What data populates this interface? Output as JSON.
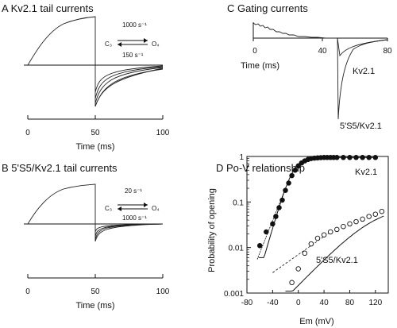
{
  "panels": {
    "a": {
      "title": "A Kv2.1 tail currents",
      "rate_forward": "1000 s⁻¹",
      "rate_backward": "150 s⁻¹",
      "state_left": "C₃",
      "state_right": "O₄",
      "xlabel": "Time (ms)",
      "xticks": [
        "0",
        "50",
        "100"
      ]
    },
    "b": {
      "title": "B 5'S5/Kv2.1 tail currents",
      "rate_forward": "20 s⁻¹",
      "rate_backward": "1000 s⁻¹",
      "state_left": "C₃",
      "state_right": "O₄",
      "xlabel": "Time (ms)",
      "xticks": [
        "0",
        "50",
        "100"
      ]
    },
    "c": {
      "title": "C Gating currents",
      "xlabel": "Time (ms)",
      "xticks": [
        "0",
        "40",
        "80"
      ],
      "label_kv": "Kv2.1",
      "label_chimera": "5'S5/Kv2.1"
    },
    "d": {
      "title": "D Po-V relationship",
      "xlabel": "Em (mV)",
      "ylabel": "Probability of opening",
      "xticks": [
        "-80",
        "-40",
        "0",
        "40",
        "80",
        "120"
      ],
      "yticks": [
        "1",
        "0.1",
        "0.01",
        "0.001"
      ],
      "label_kv": "Kv2.1",
      "label_chimera": "5'S5/Kv2.1"
    }
  },
  "chart_data": [
    {
      "type": "scatter",
      "xlabel": "Em (mV)",
      "ylabel": "Probability of opening",
      "xlim": [
        -80,
        140
      ],
      "ylim": [
        0.001,
        1
      ],
      "yscale": "log",
      "series": [
        {
          "name": "Kv2.1",
          "marker": "filled-circle",
          "x": [
            -60,
            -50,
            -40,
            -35,
            -30,
            -25,
            -20,
            -15,
            -10,
            -5,
            0,
            5,
            10,
            15,
            20,
            25,
            30,
            35,
            40,
            45,
            50,
            55,
            60,
            70,
            80,
            90,
            100,
            110,
            120
          ],
          "y": [
            0.011,
            0.022,
            0.033,
            0.048,
            0.075,
            0.11,
            0.18,
            0.26,
            0.38,
            0.5,
            0.62,
            0.72,
            0.8,
            0.86,
            0.9,
            0.92,
            0.93,
            0.94,
            0.95,
            0.95,
            0.95,
            0.95,
            0.95,
            0.95,
            0.95,
            0.95,
            0.95,
            0.95,
            0.95
          ]
        },
        {
          "name": "5'S5/Kv2.1",
          "marker": "open-circle",
          "x": [
            -10,
            0,
            10,
            20,
            30,
            40,
            50,
            60,
            70,
            80,
            90,
            100,
            110,
            120,
            130
          ],
          "y": [
            0.0017,
            0.0034,
            0.0075,
            0.012,
            0.016,
            0.019,
            0.022,
            0.025,
            0.029,
            0.033,
            0.037,
            0.042,
            0.048,
            0.054,
            0.062
          ]
        }
      ]
    }
  ]
}
